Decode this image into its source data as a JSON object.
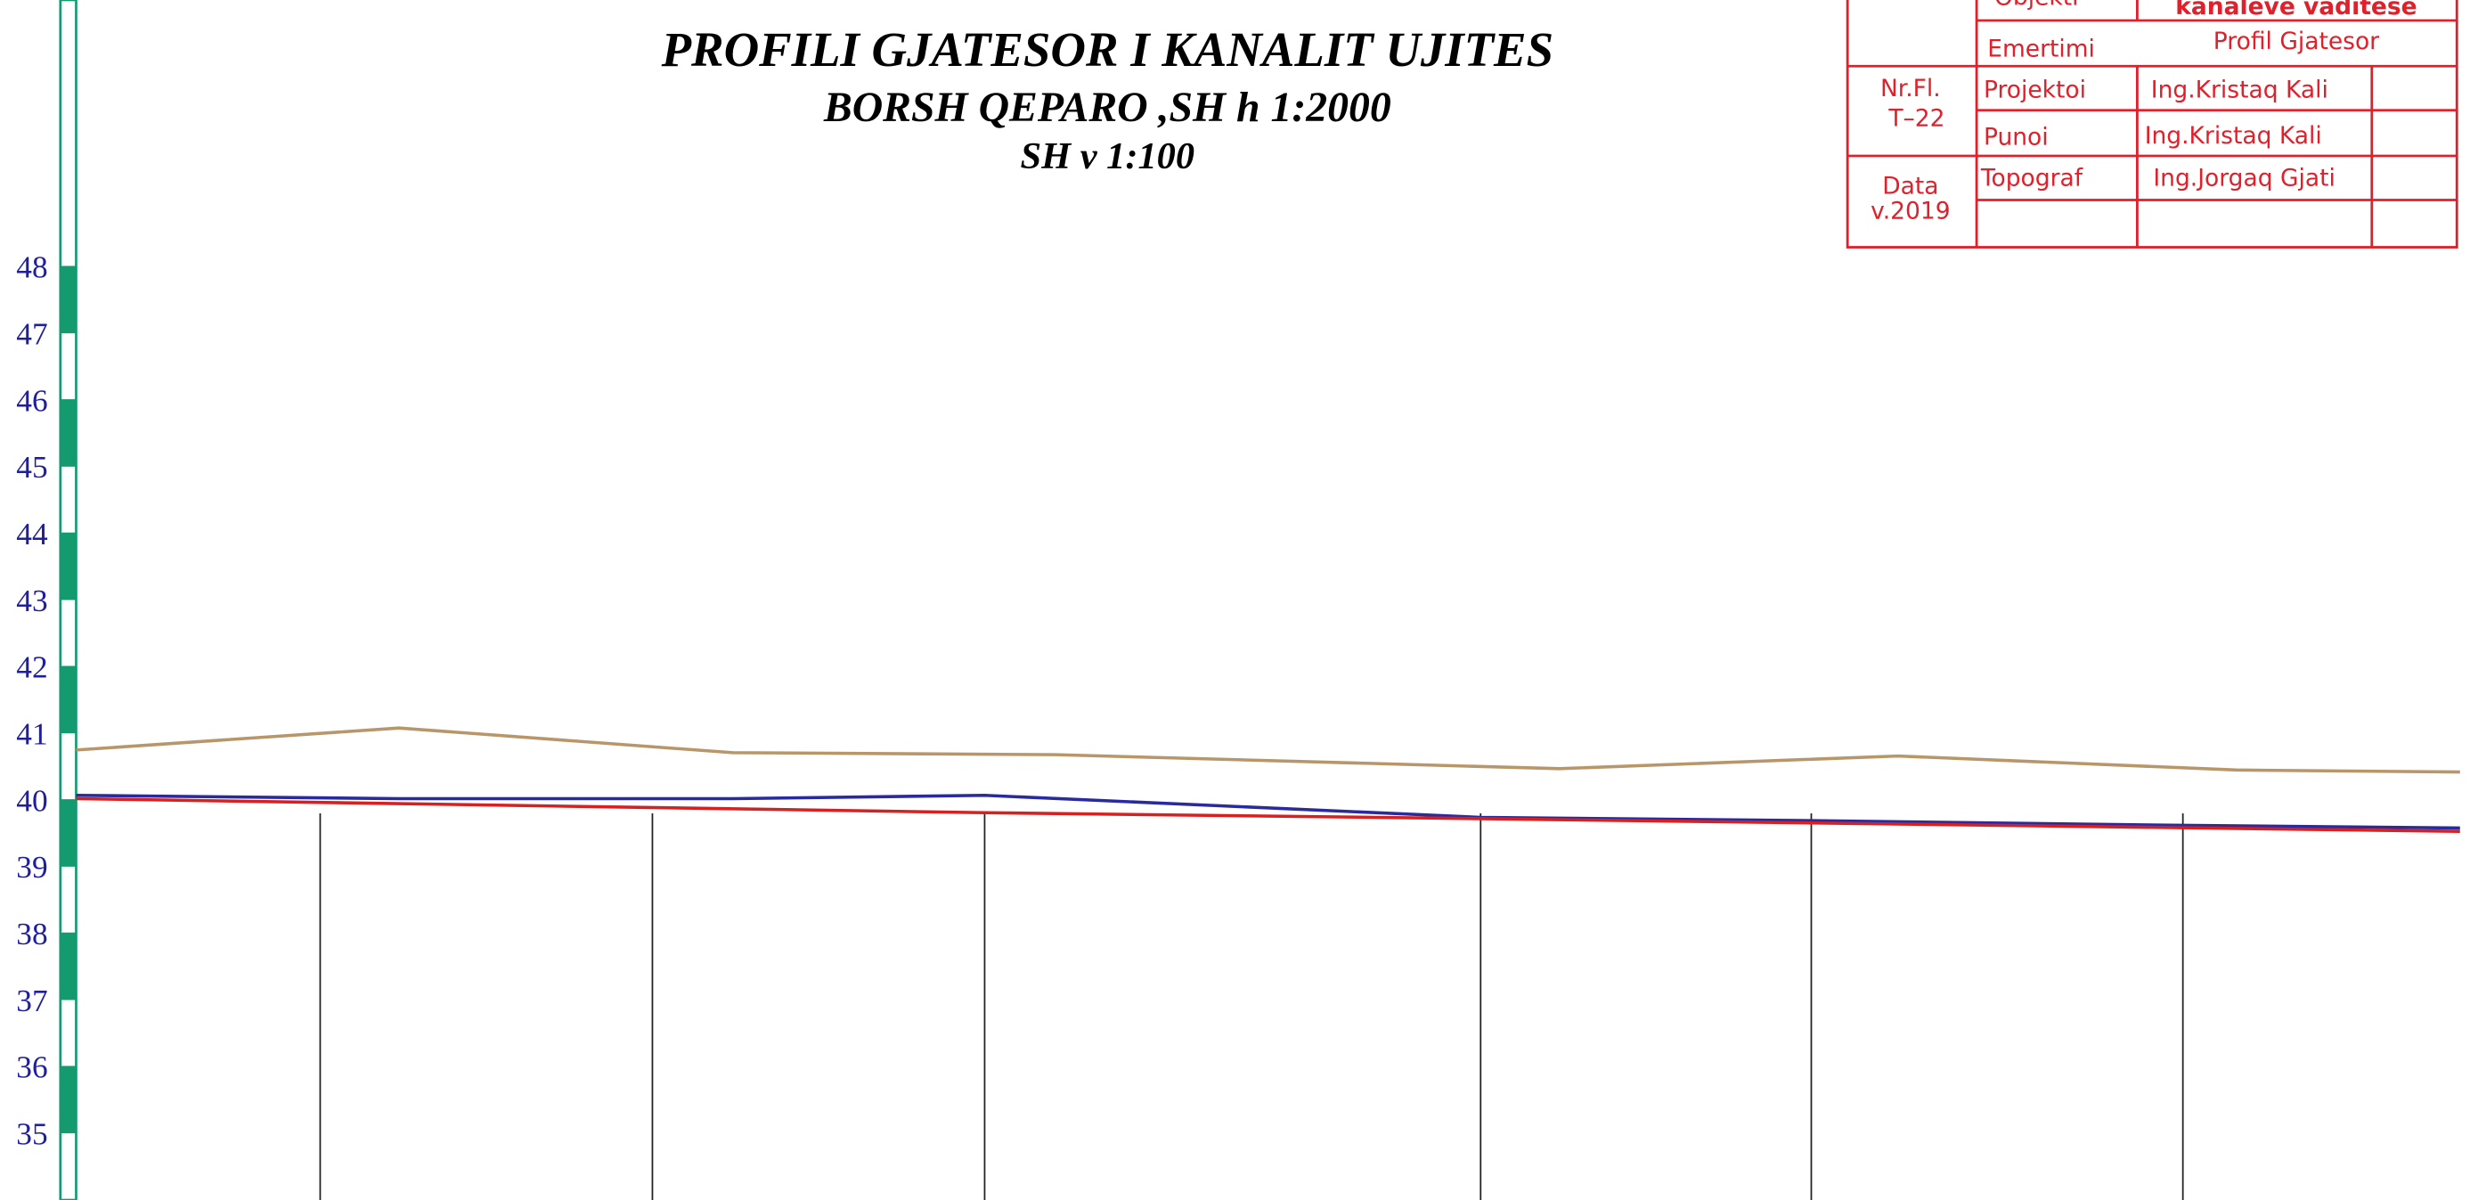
{
  "chart_data": {
    "type": "line",
    "title": "PROFILI GJATESOR I KANALIT UJITES",
    "subtitle": "BORSH QEPARO ,SH  h  1:2000",
    "subtitle2": "SH v 1:100",
    "xlim": [
      0,
      1568
    ],
    "ylim": [
      34,
      52
    ],
    "yticks": [
      35,
      36,
      37,
      38,
      39,
      40,
      41,
      42,
      43,
      44,
      45,
      46,
      47,
      48
    ],
    "stations": [
      203,
      414,
      625,
      940,
      1150,
      1386
    ],
    "series": [
      {
        "color": "#b8966a",
        "x": [
          48,
          253,
          465,
          670,
          990,
          1205,
          1420,
          1562
        ],
        "values": [
          40.75,
          41.08,
          40.71,
          40.68,
          40.47,
          40.66,
          40.45,
          40.42
        ]
      },
      {
        "color": "#2a2aa0",
        "x": [
          48,
          253,
          465,
          625,
          940,
          1150,
          1385,
          1562
        ],
        "values": [
          40.07,
          40.02,
          40.02,
          40.07,
          39.74,
          39.69,
          39.62,
          39.58
        ]
      },
      {
        "color": "#d82020",
        "x": [
          48,
          625,
          940,
          1562
        ],
        "values": [
          40.02,
          39.81,
          39.72,
          39.53
        ]
      }
    ]
  },
  "title_block": {
    "objekti": "Objekti",
    "objekti_value": "kanaleve vaditese",
    "emertimi": "Emertimi",
    "emertimi_value": "Profil Gjatesor",
    "nr_fl": "Nr.Fl.",
    "sheet": "T–22",
    "projektoi": "Projektoi",
    "projektoi_value": "Ing.Kristaq Kali",
    "punoi": "Punoi",
    "punoi_value": "Ing.Kristaq Kali",
    "data": "Data",
    "year": "v.2019",
    "topograf": "Topograf",
    "topograf_value": "Ing.Jorgaq Gjati"
  }
}
